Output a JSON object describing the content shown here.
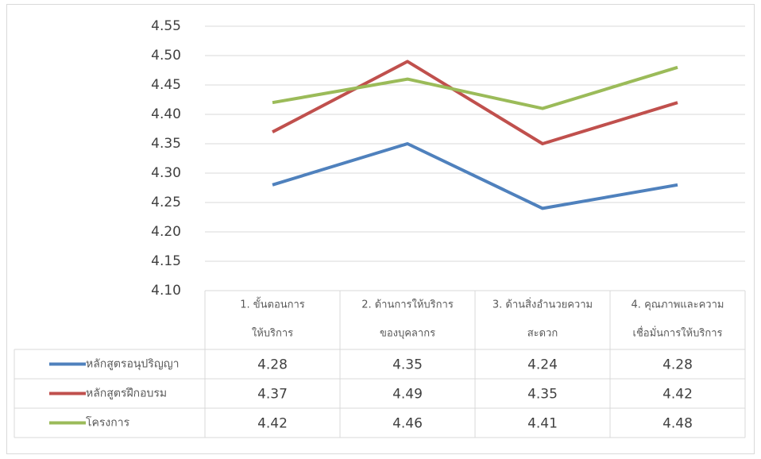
{
  "chart_data": {
    "type": "line",
    "categories": [
      [
        "1. ขั้นตอนการ",
        "ให้บริการ"
      ],
      [
        "2. ด้านการให้บริการ",
        "ของบุคลากร"
      ],
      [
        "3. ด้านสิ่งอำนวยความ",
        "สะดวก"
      ],
      [
        "4. คุณภาพและความ",
        "เชื่อมั่นการให้บริการ"
      ]
    ],
    "series": [
      {
        "name": "หลักสูตรอนุปริญญา",
        "color": "#4f81bd",
        "values": [
          4.28,
          4.35,
          4.24,
          4.28
        ]
      },
      {
        "name": "หลักสูตรฝึกอบรม",
        "color": "#c0504d",
        "values": [
          4.37,
          4.49,
          4.35,
          4.42
        ]
      },
      {
        "name": "โครงการ",
        "color": "#9bbb59",
        "values": [
          4.42,
          4.46,
          4.41,
          4.48
        ]
      }
    ],
    "ylim": [
      4.1,
      4.55
    ],
    "yticks": [
      {
        "value": 4.1,
        "label": "4.10"
      },
      4.15,
      {
        "value": 4.2,
        "label": "4.20"
      },
      4.25,
      {
        "value": 4.3,
        "label": "4.30"
      },
      4.35,
      {
        "value": 4.4,
        "label": "4.40"
      },
      4.45,
      {
        "value": 4.5,
        "label": "4.50"
      },
      4.55
    ],
    "grid": true
  }
}
